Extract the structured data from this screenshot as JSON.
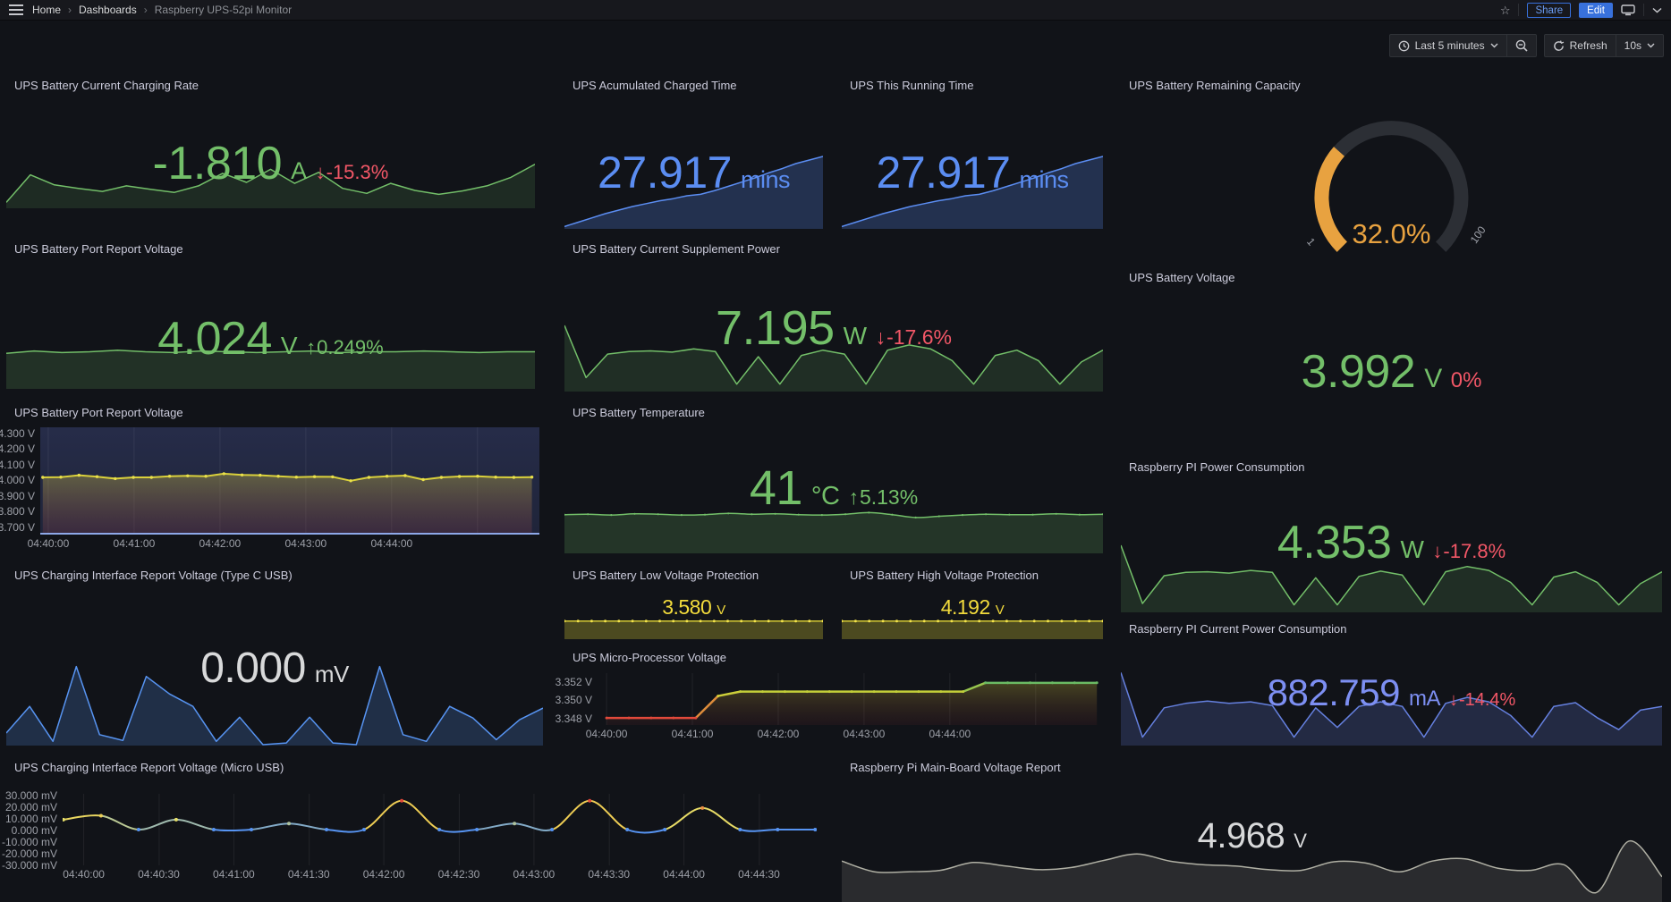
{
  "nav": {
    "breadcrumb": [
      {
        "label": "Home"
      },
      {
        "label": "Dashboards"
      },
      {
        "label": "Raspberry UPS-52pi Monitor"
      }
    ],
    "share": "Share",
    "edit": "Edit"
  },
  "icons": {
    "breadcrumb_separator": "›",
    "star": "☆"
  },
  "toolbar": {
    "time_range": "Last 5 minutes",
    "refresh": "Refresh",
    "interval": "10s"
  },
  "colors": {
    "green": "#73bf69",
    "red": "#f25767",
    "blue": "#5b8df2",
    "periwinkle": "#7d8ff2",
    "yellow": "#f2db3c",
    "orange": "#e8a240",
    "white_value": "#d8d9da",
    "accent_blue_button": "#3871dc"
  },
  "panels": {
    "charging_rate": {
      "title": "UPS Battery Current Charging Rate",
      "value": "-1.810",
      "unit": "A",
      "delta_arrow": "↓",
      "delta": "-15.3%",
      "spark": {
        "type": "area",
        "values": [
          1,
          6.5,
          4.5,
          3.8,
          3.2,
          4.3,
          3.6,
          3,
          4.3,
          6.8,
          5,
          7.6,
          4.8,
          7,
          3.8,
          2.8,
          4.8,
          3.4,
          2.6,
          3.3,
          4.3,
          6,
          8.6
        ],
        "color": "#73bf69",
        "fill": "rgba(115,191,105,0.14)"
      }
    },
    "charged_time": {
      "title": "UPS Acumulated Charged Time",
      "value": "27.917",
      "unit": "mins",
      "spark": {
        "type": "area",
        "values": [
          0.2,
          0.8,
          1.4,
          2,
          2.5,
          3,
          3.4,
          3.8,
          4.1,
          4.5,
          4.7,
          5.2,
          5.8,
          6.4,
          7,
          7.7,
          8.3,
          9,
          9.5,
          10
        ],
        "color": "#5b8df2",
        "fill": "rgba(91,141,242,0.25)"
      }
    },
    "running_time": {
      "title": "UPS This Running Time",
      "value": "27.917",
      "unit": "mins",
      "spark": {
        "type": "area",
        "values": [
          0.2,
          0.8,
          1.4,
          2,
          2.5,
          3,
          3.4,
          3.8,
          4.1,
          4.5,
          4.7,
          5.2,
          5.8,
          6.4,
          7,
          7.7,
          8.3,
          9,
          9.5,
          10
        ],
        "color": "#5b8df2",
        "fill": "rgba(91,141,242,0.25)"
      }
    },
    "capacity": {
      "title": "UPS Battery Remaining Capacity",
      "type": "gauge",
      "display": "32.0%",
      "value": 32,
      "min_label": "1",
      "max_label": "100",
      "color": "#e8a240",
      "track": "#2c2f35"
    },
    "port_voltage": {
      "title": "UPS Battery Port Report Voltage",
      "value": "4.024",
      "unit": "V",
      "delta_arrow": "↑",
      "delta": "0.249%",
      "spark": {
        "type": "area",
        "values": [
          8.8,
          9.4,
          9,
          9.2,
          9.6,
          9.2,
          9,
          9.4,
          9.2,
          9,
          9.2,
          9.4,
          9,
          9.2,
          9.2,
          9.4,
          9.2,
          9,
          9.2,
          9.2
        ],
        "color": "#73bf69",
        "fill": "rgba(115,191,105,0.18)"
      }
    },
    "supplement_power": {
      "title": "UPS Battery Current Supplement Power",
      "value": "7.195",
      "unit": "W",
      "delta_arrow": "↓",
      "delta": "-17.6%",
      "spark": {
        "type": "area",
        "values": [
          10,
          2,
          5.6,
          6,
          6.1,
          5.9,
          6.4,
          6,
          1,
          5.2,
          1,
          5.4,
          6.2,
          5.6,
          1,
          6.2,
          7,
          6.4,
          4.6,
          1,
          5.4,
          6.2,
          4.6,
          1,
          4.4,
          6.2
        ],
        "color": "#73bf69",
        "fill": "rgba(115,191,105,0.16)"
      }
    },
    "battery_voltage": {
      "title": "UPS Battery Voltage",
      "value": "3.992",
      "unit": "V",
      "delta": "0%"
    },
    "port_voltage_ts": {
      "title": "UPS Battery Port Report Voltage",
      "yticks": [
        "4.300 V",
        "4.200 V",
        "4.100 V",
        "4.000 V",
        "3.900 V",
        "3.800 V",
        "3.700 V"
      ],
      "xticks": [
        "04:40:00",
        "04:41:00",
        "04:42:00",
        "04:43:00",
        "04:44:00"
      ],
      "series": {
        "type": "line",
        "ymin": 3.654,
        "ymax": 4.34,
        "x0": 0.005,
        "x1": 0.985,
        "values": [
          4.02,
          4.022,
          4.034,
          4.025,
          4.012,
          4.02,
          4.02,
          4.028,
          4.03,
          4.028,
          4.044,
          4.036,
          4.034,
          4.028,
          4.022,
          4.025,
          4.024,
          3.998,
          4.02,
          4.028,
          4.032,
          4.006,
          4.02,
          4.026,
          4.028,
          4.022,
          4.02,
          4.022
        ],
        "color": "#d9d03b",
        "lw": 2,
        "markers": true,
        "marker_color": "#e9e04a",
        "mr": 1.7,
        "fill_gradient": [
          "rgba(196,185,70,0.38)",
          "rgba(150,60,80,0.22)"
        ],
        "baseline": "#8ea8e8",
        "vgrid": [
          0.016,
          0.188,
          0.36,
          0.532,
          0.704,
          0.876
        ]
      }
    },
    "temperature": {
      "title": "UPS Battery Temperature",
      "value": "41",
      "unit": "°C",
      "delta_arrow": "↑",
      "delta": "5.13%",
      "spark": {
        "type": "area",
        "smooth": true,
        "markers": true,
        "mr": 1.1,
        "values": [
          9.2,
          9.3,
          9.1,
          9.4,
          9.3,
          9.1,
          9.2,
          9.5,
          9.3,
          9.4,
          9.2,
          9.1,
          9.3,
          9.7,
          9.2,
          8.5,
          8.8,
          9.1,
          9.3,
          9.2,
          9.2,
          9.4,
          9.2,
          9.3
        ],
        "color": "#73bf69",
        "fill": "rgba(115,191,105,0.2)"
      }
    },
    "pi_power": {
      "title": "Raspberry PI Power Consumption",
      "value": "4.353",
      "unit": "W",
      "delta_arrow": "↓",
      "delta": "-17.8%",
      "spark": {
        "type": "area",
        "values": [
          10,
          1.2,
          5.4,
          5.9,
          6,
          5.8,
          6.2,
          5.9,
          1,
          5.1,
          1,
          5.3,
          6.1,
          5.5,
          1,
          6,
          6.8,
          6.2,
          4.4,
          1,
          5.2,
          6,
          4.4,
          1,
          4.2,
          6
        ],
        "color": "#73bf69",
        "fill": "rgba(115,191,105,0.16)"
      }
    },
    "typec_voltage": {
      "title": "UPS Charging Interface Report Voltage (Type C USB)",
      "value": "0.000",
      "unit": "mV",
      "spark": {
        "type": "area",
        "values": [
          1.4,
          4.6,
          0.4,
          9.4,
          1.2,
          0.5,
          8.2,
          6.1,
          4.6,
          0.4,
          3.3,
          0,
          0.2,
          3.3,
          0.2,
          0,
          9.4,
          1.2,
          0.4,
          4.6,
          3.2,
          0.6,
          3,
          4.4
        ],
        "color": "#5794f2",
        "fill": "rgba(87,148,242,0.22)"
      }
    },
    "low_protect": {
      "title": "UPS Battery Low Voltage Protection",
      "value": "3.580",
      "unit": "V",
      "spark": {
        "type": "area",
        "values": [
          8,
          8,
          8,
          8,
          8,
          8,
          8,
          8,
          8,
          8,
          8,
          8,
          8,
          8,
          8,
          8,
          8,
          8,
          8,
          8
        ],
        "color": "#d6cb34",
        "fill": "rgba(214,203,52,0.30)",
        "markers": true,
        "marker_color": "#f4e44a",
        "mr": 1.5
      }
    },
    "high_protect": {
      "title": "UPS Battery High Voltage Protection",
      "value": "4.192",
      "unit": "V",
      "spark": {
        "type": "area",
        "values": [
          8,
          8,
          8,
          8,
          8,
          8,
          8,
          8,
          8,
          8,
          8,
          8,
          8,
          8,
          8,
          8,
          8,
          8,
          8,
          8
        ],
        "color": "#d6cb34",
        "fill": "rgba(214,203,52,0.30)",
        "markers": true,
        "marker_color": "#f4e44a",
        "mr": 1.5
      }
    },
    "mcu_voltage": {
      "title": "UPS Micro-Processor Voltage",
      "yticks": [
        "3.352 V",
        "3.350 V",
        "3.348 V"
      ],
      "xticks": [
        "04:40:00",
        "04:41:00",
        "04:42:00",
        "04:43:00",
        "04:44:00"
      ],
      "series": {
        "type": "line",
        "ymin": 3.3473,
        "ymax": 3.353,
        "x0": 0.018,
        "x1": 0.995,
        "values": [
          3.348,
          3.348,
          3.348,
          3.348,
          3.348,
          3.3505,
          3.351,
          3.351,
          3.351,
          3.351,
          3.351,
          3.351,
          3.351,
          3.351,
          3.351,
          3.351,
          3.351,
          3.352,
          3.352,
          3.352,
          3.352,
          3.352,
          3.352
        ],
        "lw": 2.5,
        "markers": true,
        "mr": 1.5,
        "color_stops": [
          [
            3.348,
            "#e2493b"
          ],
          [
            3.3505,
            "#d7cf3a"
          ],
          [
            3.351,
            "#c3cf39"
          ],
          [
            3.352,
            "#6bbb64"
          ]
        ],
        "fill_gradient": [
          "rgba(190,180,55,0.30)",
          "rgba(120,40,45,0.12)"
        ],
        "vgrid": [
          0.018,
          0.189,
          0.36,
          0.531,
          0.702,
          0.873
        ]
      }
    },
    "pi_current": {
      "title": "Raspberry PI Current Power Consumption",
      "value": "882.759",
      "unit": "mA",
      "delta_arrow": "↓",
      "delta": "-14.4%",
      "spark": {
        "type": "area",
        "values": [
          9.6,
          1,
          4.9,
          5.5,
          5.8,
          5.5,
          5.7,
          5.2,
          1,
          4.9,
          2.3,
          5.1,
          5.7,
          5.1,
          1,
          5.5,
          6.3,
          5.7,
          3.9,
          1,
          5.1,
          5.6,
          3.6,
          2,
          4.6,
          5.1
        ],
        "color": "#6580df",
        "fill": "rgba(101,128,223,0.22)"
      }
    },
    "micro_usb": {
      "title": "UPS Charging Interface Report Voltage (Micro USB)",
      "yticks": [
        "30.000 mV",
        "20.000 mV",
        "10.000 mV",
        "0.000 mV",
        "-10.000 mV",
        "-20.000 mV",
        "-30.000 mV"
      ],
      "xticks": [
        "04:40:00",
        "04:40:30",
        "04:41:00",
        "04:41:30",
        "04:42:00",
        "04:42:30",
        "04:43:00",
        "04:43:30",
        "04:44:00",
        "04:44:30"
      ],
      "series": {
        "type": "line",
        "ymin": -31.5,
        "ymax": 31.5,
        "x0": 0.001,
        "x1": 0.998,
        "values": [
          9,
          12.5,
          0,
          9,
          0,
          0,
          5.5,
          0,
          0,
          26,
          0,
          0,
          5.5,
          0,
          26,
          0,
          0,
          19.5,
          0,
          0,
          0
        ],
        "lw": 2,
        "smooth": true,
        "markers": true,
        "mr": 2,
        "color_stops": [
          [
            0,
            "#5794f2"
          ],
          [
            9,
            "#e6df6a"
          ],
          [
            14,
            "#f0c94e"
          ],
          [
            26,
            "#e2493b"
          ]
        ],
        "vgrid": [
          0.028,
          0.128,
          0.227,
          0.327,
          0.426,
          0.526,
          0.625,
          0.725,
          0.824,
          0.924
        ]
      }
    },
    "mainboard_voltage": {
      "title": "Raspberry Pi Main-Board Voltage Report",
      "value": "4.968",
      "unit": "V",
      "spark": {
        "type": "area",
        "smooth": true,
        "values": [
          5.6,
          4.1,
          4.1,
          4.3,
          5.4,
          4.9,
          4.4,
          4.7,
          5.7,
          6.6,
          5.6,
          5.1,
          4.9,
          4.4,
          4.3,
          5.5,
          5.3,
          4.1,
          5.6,
          5.9,
          4.6,
          4.3,
          5.1,
          1.2,
          8.4,
          3.4
        ],
        "color": "#b0b0a4",
        "fill": "rgba(176,176,164,0.16)"
      }
    }
  }
}
